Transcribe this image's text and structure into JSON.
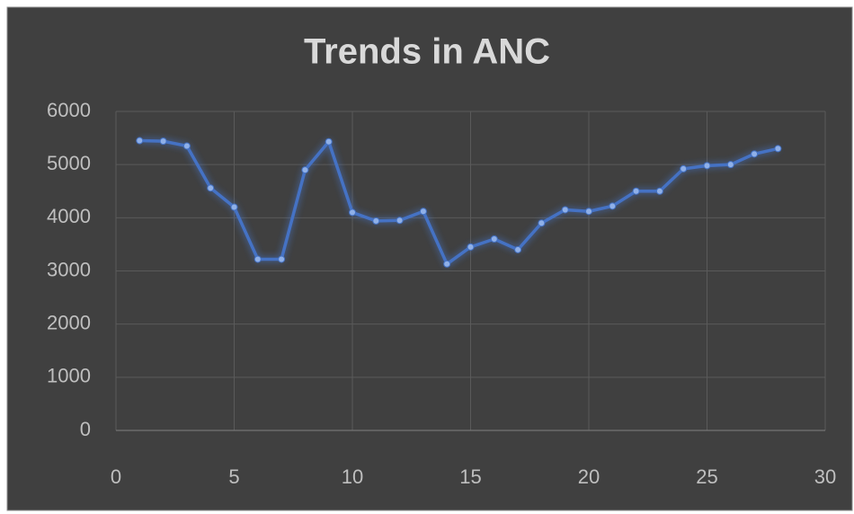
{
  "chart_data": {
    "type": "line",
    "title": "Trends in ANC",
    "x": [
      1,
      2,
      3,
      4,
      5,
      6,
      7,
      8,
      9,
      10,
      11,
      12,
      13,
      14,
      15,
      16,
      17,
      18,
      19,
      20,
      21,
      22,
      23,
      24,
      25,
      26,
      27,
      28
    ],
    "values": [
      5450,
      5440,
      5350,
      4560,
      4200,
      3220,
      3220,
      4900,
      5430,
      4100,
      3940,
      3950,
      4120,
      3130,
      3450,
      3600,
      3400,
      3900,
      4150,
      4120,
      4220,
      4500,
      4500,
      4920,
      4980,
      5000,
      5200,
      5300
    ],
    "color": "#4472c4",
    "xlim": [
      0,
      30
    ],
    "xticks": [
      0,
      5,
      10,
      15,
      20,
      25,
      30
    ],
    "ylim": [
      0,
      6000
    ],
    "yticks": [
      0,
      1000,
      2000,
      3000,
      4000,
      5000,
      6000
    ],
    "grid": true
  }
}
